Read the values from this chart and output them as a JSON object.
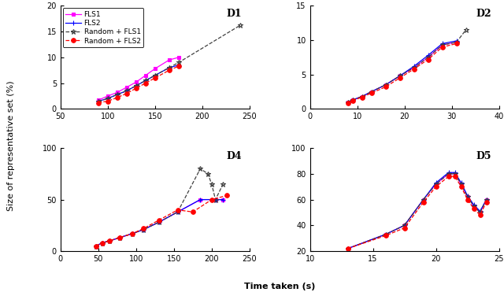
{
  "xlabel": "Time taken (s)",
  "ylabel": "Size of representative set (%)",
  "legend_labels": [
    "FLS1",
    "FLS2",
    "Random + FLS1",
    "Random + FLS2"
  ],
  "D1": {
    "label": "D1",
    "xlim": [
      50,
      250
    ],
    "ylim": [
      0,
      20
    ],
    "xticks": [
      50,
      100,
      150,
      200,
      250
    ],
    "yticks": [
      0,
      5,
      10,
      15,
      20
    ],
    "FLS1": {
      "x": [
        90,
        100,
        110,
        120,
        130,
        140,
        150,
        165,
        175
      ],
      "y": [
        1.7,
        2.5,
        3.2,
        4.2,
        5.2,
        6.5,
        7.8,
        9.5,
        10.0
      ]
    },
    "FLS2": {
      "x": [
        90,
        100,
        110,
        120,
        130,
        140,
        150,
        165,
        175
      ],
      "y": [
        1.5,
        2.0,
        2.8,
        3.5,
        4.5,
        5.5,
        6.5,
        8.0,
        8.5
      ]
    },
    "RFLS1": {
      "x": [
        90,
        100,
        110,
        120,
        130,
        140,
        150,
        165,
        175,
        240
      ],
      "y": [
        1.5,
        2.0,
        2.8,
        3.5,
        4.5,
        5.5,
        6.5,
        8.0,
        9.0,
        16.2
      ]
    },
    "RFLS2": {
      "x": [
        90,
        100,
        110,
        120,
        130,
        140,
        150,
        165,
        175
      ],
      "y": [
        1.2,
        1.5,
        2.2,
        3.0,
        4.0,
        5.0,
        6.0,
        7.5,
        8.3
      ]
    }
  },
  "D2": {
    "label": "D2",
    "xlim": [
      0,
      40
    ],
    "ylim": [
      0,
      15
    ],
    "xticks": [
      0,
      10,
      20,
      30,
      40
    ],
    "yticks": [
      0,
      5,
      10,
      15
    ],
    "FLS1": {
      "x": [
        8,
        9,
        11,
        13,
        16,
        19,
        22,
        25,
        28,
        31
      ],
      "y": [
        1.0,
        1.3,
        1.8,
        2.5,
        3.5,
        4.8,
        6.0,
        7.5,
        9.3,
        9.7
      ]
    },
    "FLS2": {
      "x": [
        8,
        9,
        11,
        13,
        16,
        19,
        22,
        25,
        28,
        31
      ],
      "y": [
        1.0,
        1.3,
        1.8,
        2.5,
        3.5,
        4.8,
        6.2,
        7.8,
        9.5,
        9.9
      ]
    },
    "RFLS1": {
      "x": [
        8,
        9,
        11,
        13,
        16,
        19,
        22,
        25,
        28,
        31,
        33
      ],
      "y": [
        1.0,
        1.3,
        1.8,
        2.5,
        3.5,
        4.8,
        6.0,
        7.5,
        9.3,
        9.7,
        11.5
      ]
    },
    "RFLS2": {
      "x": [
        8,
        9,
        11,
        13,
        16,
        19,
        22,
        25,
        28,
        31
      ],
      "y": [
        0.9,
        1.2,
        1.7,
        2.3,
        3.2,
        4.5,
        5.8,
        7.2,
        9.0,
        9.5
      ]
    }
  },
  "D4": {
    "label": "D4",
    "xlim": [
      0,
      250
    ],
    "ylim": [
      0,
      100
    ],
    "xticks": [
      0,
      50,
      100,
      150,
      200,
      250
    ],
    "yticks": [
      0,
      50,
      100
    ],
    "FLS1": {
      "x": [
        47,
        55,
        65,
        78,
        95,
        110,
        130,
        155,
        185,
        205,
        215
      ],
      "y": [
        5,
        8,
        10,
        13,
        17,
        21,
        28,
        38,
        50,
        50,
        50
      ]
    },
    "FLS2": {
      "x": [
        47,
        55,
        65,
        78,
        95,
        110,
        130,
        155,
        185,
        205,
        215
      ],
      "y": [
        5,
        8,
        10,
        13,
        17,
        21,
        28,
        38,
        50,
        50,
        50
      ]
    },
    "RFLS1": {
      "x": [
        47,
        55,
        65,
        78,
        95,
        110,
        130,
        155,
        185,
        195,
        200,
        205,
        215
      ],
      "y": [
        5,
        8,
        10,
        13,
        17,
        21,
        28,
        38,
        80,
        75,
        65,
        50,
        65
      ]
    },
    "RFLS2": {
      "x": [
        47,
        55,
        65,
        78,
        95,
        110,
        130,
        155,
        175,
        200,
        220
      ],
      "y": [
        5,
        8,
        10,
        13,
        17,
        22,
        30,
        40,
        38,
        50,
        54
      ]
    }
  },
  "D5": {
    "label": "D5",
    "xlim": [
      10,
      25
    ],
    "ylim": [
      20,
      100
    ],
    "xticks": [
      10,
      15,
      20,
      25
    ],
    "yticks": [
      20,
      40,
      60,
      80,
      100
    ],
    "FLS1": {
      "x": [
        13,
        16,
        17.5,
        19,
        20,
        21,
        21.5,
        22,
        22.5,
        23,
        23.5,
        24
      ],
      "y": [
        22,
        33,
        40,
        60,
        72,
        80,
        80,
        72,
        62,
        55,
        50,
        60
      ]
    },
    "FLS2": {
      "x": [
        13,
        16,
        17.5,
        19,
        20,
        21,
        21.5,
        22,
        22.5,
        23,
        23.5,
        24
      ],
      "y": [
        22,
        33,
        40,
        60,
        73,
        81,
        81,
        73,
        63,
        56,
        51,
        60
      ]
    },
    "RFLS1": {
      "x": [
        13,
        16,
        17.5,
        19,
        20,
        21,
        21.5,
        22,
        22.5,
        23,
        23.5,
        24
      ],
      "y": [
        22,
        33,
        40,
        60,
        72,
        80,
        80,
        72,
        62,
        55,
        50,
        60
      ]
    },
    "RFLS2": {
      "x": [
        13,
        16,
        17.5,
        19,
        20,
        21,
        21.5,
        22,
        22.5,
        23,
        23.5,
        24
      ],
      "y": [
        22,
        32,
        38,
        58,
        70,
        78,
        78,
        70,
        60,
        53,
        48,
        58
      ]
    }
  }
}
